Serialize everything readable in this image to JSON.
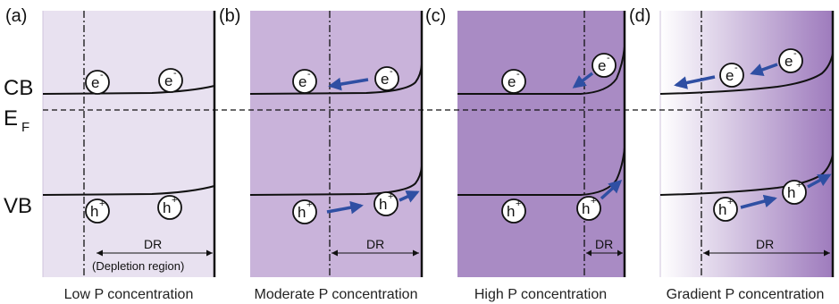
{
  "left_labels": {
    "cb": "CB",
    "ef_main": "E",
    "ef_sub": "F",
    "vb": "VB"
  },
  "carriers": {
    "electron_base": "e",
    "electron_sign": "-",
    "hole_base": "h",
    "hole_sign": "+"
  },
  "colors": {
    "panel_a": "#e8e1f0",
    "panel_b": "#c9b3da",
    "panel_c": "#a98bc4",
    "panel_d_start": "#ffffff",
    "panel_d_end": "#9e7bbd",
    "arrow": "#2f4fa3",
    "line": "#111111"
  },
  "panels": [
    {
      "letter": "(a)",
      "caption": "Low P concentration",
      "dr_label": "DR",
      "dr_note": "(Depletion region)"
    },
    {
      "letter": "(b)",
      "caption": "Moderate P concentration",
      "dr_label": "DR",
      "dr_note": ""
    },
    {
      "letter": "(c)",
      "caption": "High P concentration",
      "dr_label": "DR",
      "dr_note": ""
    },
    {
      "letter": "(d)",
      "caption": "Gradient P concentration",
      "dr_label": "DR",
      "dr_note": ""
    }
  ]
}
